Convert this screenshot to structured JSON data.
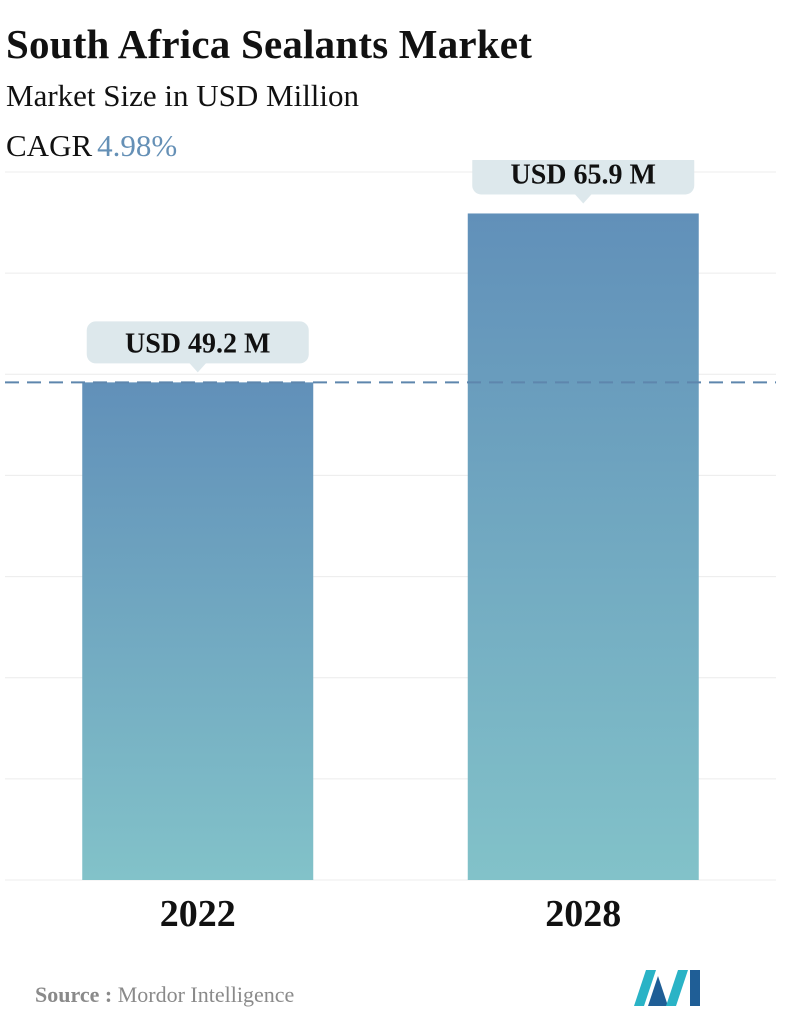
{
  "header": {
    "title": "South Africa Sealants Market",
    "subtitle": "Market Size in USD Million",
    "cagr_label": "CAGR",
    "cagr_value": "4.98%"
  },
  "chart_data": {
    "type": "bar",
    "categories": [
      "2022",
      "2028"
    ],
    "values": [
      49.2,
      65.9
    ],
    "data_labels": [
      "USD 49.2 M",
      "USD 65.9 M"
    ],
    "title": "South Africa Sealants Market",
    "ylabel": "Market Size in USD Million",
    "ylim": [
      0,
      70
    ],
    "grid": true,
    "reference_line_value": 49.2
  },
  "colors": {
    "bar_top": "#6190b9",
    "bar_bottom": "#82c2c9",
    "callout_bg": "#dde8ec",
    "reference_line": "#5e86ad",
    "cagr_value": "#6590b6"
  },
  "footer": {
    "source_label": "Source :",
    "source_text": "Mordor Intelligence",
    "logo_icon": "mordor-intelligence-logo-icon"
  }
}
